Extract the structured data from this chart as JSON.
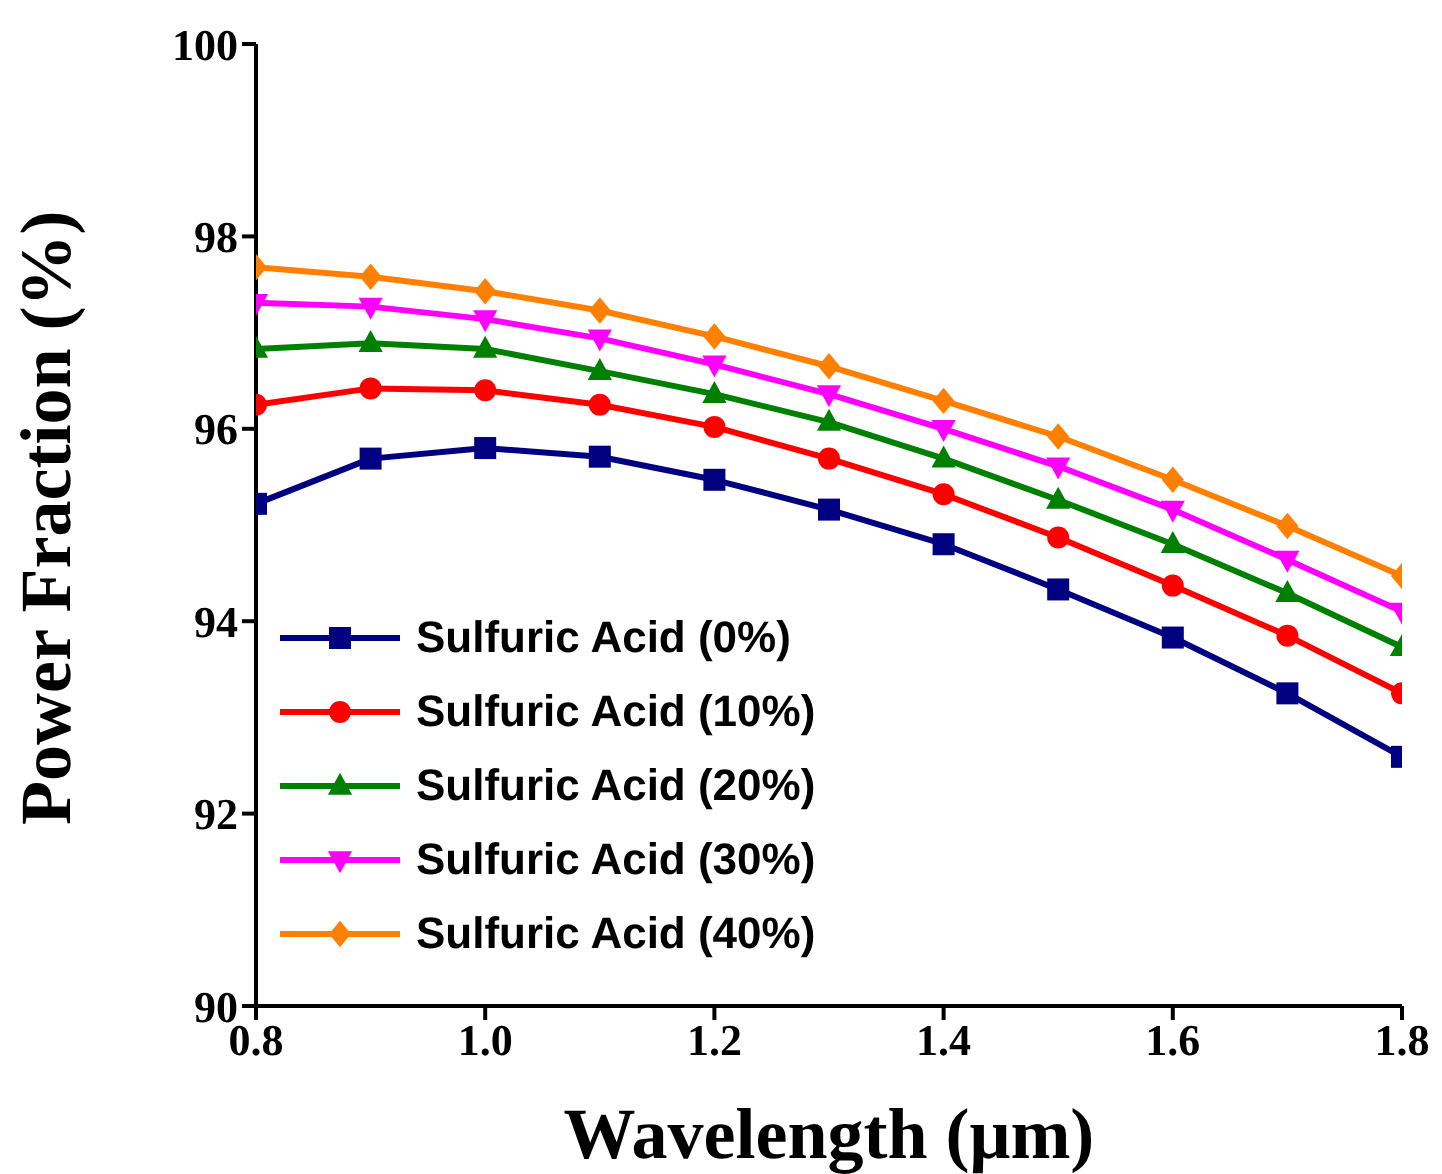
{
  "chart_data": {
    "type": "line",
    "xlabel": "Wavelength (μm)",
    "ylabel": "Power Fraction (%)",
    "x": [
      0.8,
      0.9,
      1.0,
      1.1,
      1.2,
      1.3,
      1.4,
      1.5,
      1.6,
      1.7,
      1.8
    ],
    "xlim": [
      0.8,
      1.8
    ],
    "xticks": [
      0.8,
      {
        "value": 1,
        "label": "1.0"
      },
      1.2,
      1.4,
      1.6,
      1.8
    ],
    "ylim": [
      90,
      100
    ],
    "yticks": [
      90,
      92,
      94,
      96,
      98,
      100
    ],
    "grid": false,
    "legend": "bottom left",
    "line_style": "solid",
    "series": [
      {
        "name": "Sulfuric Acid (0%)",
        "color": "#000080",
        "marker": "square",
        "values": [
          95.22,
          95.69,
          95.8,
          95.71,
          95.47,
          95.16,
          94.8,
          94.33,
          93.83,
          93.25,
          92.59
        ]
      },
      {
        "name": "Sulfuric Acid (10%)",
        "color": "#ff0000",
        "marker": "circle",
        "values": [
          96.25,
          96.42,
          96.4,
          96.25,
          96.02,
          95.69,
          95.32,
          94.87,
          94.37,
          93.85,
          93.25
        ]
      },
      {
        "name": "Sulfuric Acid (20%)",
        "color": "#008000",
        "marker": "triangle",
        "values": [
          96.83,
          96.89,
          96.83,
          96.6,
          96.36,
          96.07,
          95.69,
          95.26,
          94.8,
          94.29,
          93.73
        ]
      },
      {
        "name": "Sulfuric Acid (30%)",
        "color": "#ff00ff",
        "marker": "triangle-down",
        "values": [
          97.31,
          97.27,
          97.14,
          96.94,
          96.67,
          96.36,
          96.0,
          95.61,
          95.16,
          94.64,
          94.1
        ]
      },
      {
        "name": "Sulfuric Acid (40%)",
        "color": "#ff8000",
        "marker": "diamond",
        "values": [
          97.68,
          97.58,
          97.43,
          97.23,
          96.96,
          96.65,
          96.29,
          95.92,
          95.47,
          94.99,
          94.47
        ]
      }
    ]
  }
}
